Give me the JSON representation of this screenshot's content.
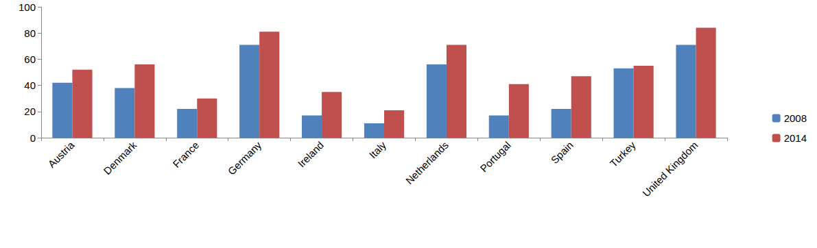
{
  "chart_data": {
    "type": "bar",
    "categories": [
      "Austria",
      "Denmark",
      "France",
      "Germany",
      "Ireland",
      "Italy",
      "Netherlands",
      "Portugal",
      "Spain",
      "Turkey",
      "United Kingdom"
    ],
    "series": [
      {
        "name": "2008",
        "color": "#4f81bd",
        "values": [
          42,
          38,
          22,
          71,
          17,
          11,
          56,
          17,
          22,
          53,
          71
        ]
      },
      {
        "name": "2014",
        "color": "#c0504d",
        "values": [
          52,
          56,
          30,
          81,
          35,
          21,
          71,
          41,
          47,
          55,
          84
        ]
      }
    ],
    "ylim": [
      0,
      100
    ],
    "yticks": [
      0,
      20,
      40,
      60,
      80,
      100
    ],
    "grid": false,
    "legend": "right"
  }
}
